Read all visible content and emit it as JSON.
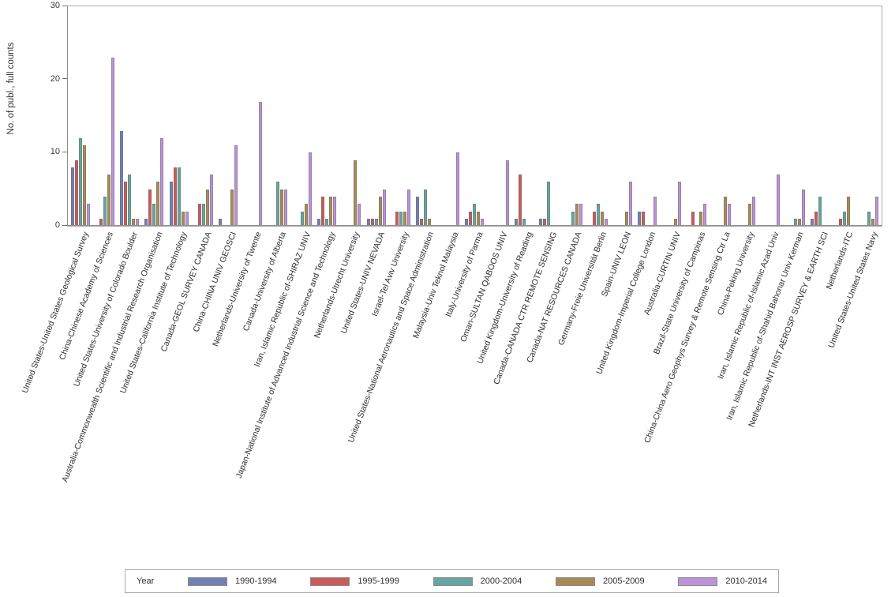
{
  "y_axis": {
    "label": "No. of publ., full counts",
    "ticks": [
      0,
      10,
      20,
      30
    ]
  },
  "legend": {
    "title": "Year"
  },
  "chart_data": {
    "type": "bar",
    "title": "",
    "xlabel": "",
    "ylabel": "No. of publ., full counts",
    "ylim": [
      0,
      30
    ],
    "grid": false,
    "legend_position": "bottom",
    "legend_title": "Year",
    "categories": [
      "United States-United States Geological Survey",
      "China-Chinese Academy of Sciences",
      "United States-University of Colorado Boulder",
      "Australia-Commonwealth Scientific and Industrial Research Organisation",
      "United States-California Institute of Technology",
      "Canada-GEOL SURVEY CANADA",
      "China-CHINA UNIV GEOSCI",
      "Netherlands-University of Twente",
      "Canada-University of Alberta",
      "Iran, Islamic Republic of-SHIRAZ UNIV",
      "Japan-National Institute of Advanced Industrial Science and Technology",
      "Netherlands-Utrecht University",
      "United States-UNIV NEVADA",
      "Israel-Tel Aviv University",
      "United States-National Aeronautics and Space Administration",
      "Malaysia-Univ Teknol Malaysia",
      "Italy-University of Parma",
      "Oman-SULTAN QABOOS UNIV",
      "United Kingdom-University of Reading",
      "Canada-CANADA CTR REMOTE SENSING",
      "Canada-NAT RESOURCES CANADA",
      "Germany-Freie Universität Berlin",
      "Spain-UNIV LEON",
      "United Kingdom-Imperial College London",
      "Australia-CURTIN UNIV",
      "Brazil-State University of Campinas",
      "China-China Aero Geophys Survey & Remote Sensing Ctr La",
      "China-Peking University",
      "Iran, Islamic Republic of-Islamic Azad Univ",
      "Iran, Islamic Republic of-Shahid Bahonar Univ Kerman",
      "Netherlands-INT INST AEROSP SURVEY & EARTH SCI",
      "Netherlands-ITC",
      "United States-United States Navy"
    ],
    "series": [
      {
        "name": "1990-1994",
        "color": "#7380B5",
        "values": [
          8,
          0,
          13,
          1,
          6,
          0,
          1,
          0,
          0,
          0,
          1,
          0,
          1,
          0,
          4,
          0,
          1,
          0,
          1,
          1,
          0,
          0,
          0,
          2,
          0,
          0,
          0,
          0,
          0,
          0,
          1,
          0,
          0
        ]
      },
      {
        "name": "1995-1999",
        "color": "#C95B5B",
        "values": [
          9,
          1,
          6,
          5,
          8,
          3,
          0,
          0,
          0,
          0,
          4,
          0,
          1,
          2,
          1,
          0,
          2,
          0,
          7,
          1,
          0,
          2,
          0,
          2,
          0,
          2,
          0,
          0,
          0,
          0,
          2,
          1,
          0
        ]
      },
      {
        "name": "2000-2004",
        "color": "#66A5A0",
        "values": [
          12,
          4,
          7,
          3,
          8,
          3,
          0,
          0,
          6,
          2,
          1,
          0,
          1,
          2,
          5,
          0,
          3,
          0,
          1,
          6,
          2,
          3,
          0,
          0,
          0,
          0,
          0,
          0,
          0,
          1,
          4,
          2,
          2
        ]
      },
      {
        "name": "2005-2009",
        "color": "#A98A56",
        "values": [
          11,
          7,
          1,
          6,
          2,
          5,
          5,
          0,
          5,
          3,
          4,
          9,
          4,
          2,
          1,
          0,
          2,
          0,
          0,
          0,
          3,
          2,
          2,
          0,
          1,
          2,
          4,
          3,
          0,
          1,
          0,
          4,
          1
        ]
      },
      {
        "name": "2010-2014",
        "color": "#BC92D8",
        "values": [
          3,
          23,
          1,
          12,
          2,
          7,
          11,
          17,
          5,
          10,
          4,
          3,
          5,
          5,
          0,
          10,
          1,
          9,
          0,
          0,
          3,
          1,
          6,
          4,
          6,
          3,
          3,
          4,
          7,
          5,
          0,
          0,
          4
        ]
      }
    ]
  }
}
